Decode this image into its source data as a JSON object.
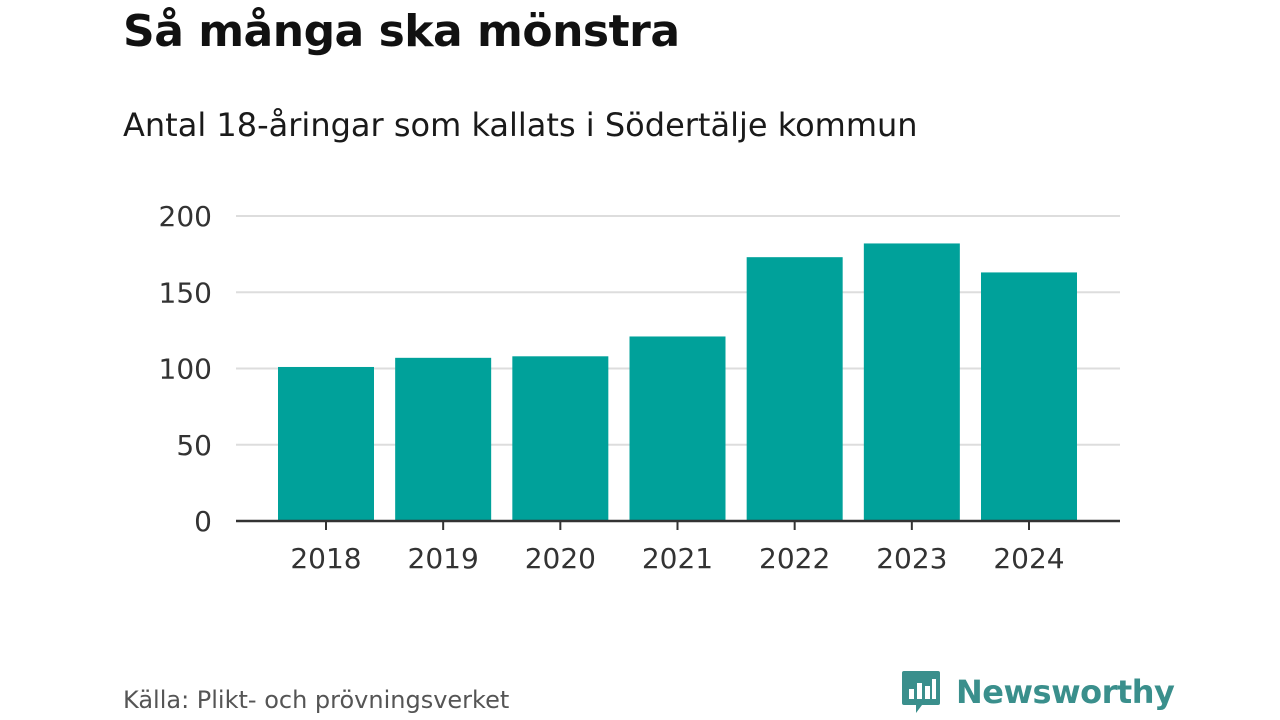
{
  "header": {
    "title": "Så många ska mönstra",
    "subtitle": "Antal 18-åringar som kallats i Södertälje kommun"
  },
  "footer": {
    "source": "Källa: Plikt- och prövningsverket",
    "brand": "Newsworthy",
    "brand_icon": "bar-chart-speech-bubble-icon"
  },
  "colors": {
    "bar": "#00a19a",
    "grid": "#dddddd",
    "axis": "#333333",
    "brand": "#3a8f8c"
  },
  "chart_data": {
    "type": "bar",
    "categories": [
      "2018",
      "2019",
      "2020",
      "2021",
      "2022",
      "2023",
      "2024"
    ],
    "values": [
      101,
      107,
      108,
      121,
      173,
      182,
      163
    ],
    "title": "Så många ska mönstra",
    "subtitle": "Antal 18-åringar som kallats i Södertälje kommun",
    "xlabel": "",
    "ylabel": "",
    "ylim": [
      0,
      200
    ],
    "yticks": [
      0,
      50,
      100,
      150,
      200
    ],
    "grid": true,
    "legend": "none"
  }
}
